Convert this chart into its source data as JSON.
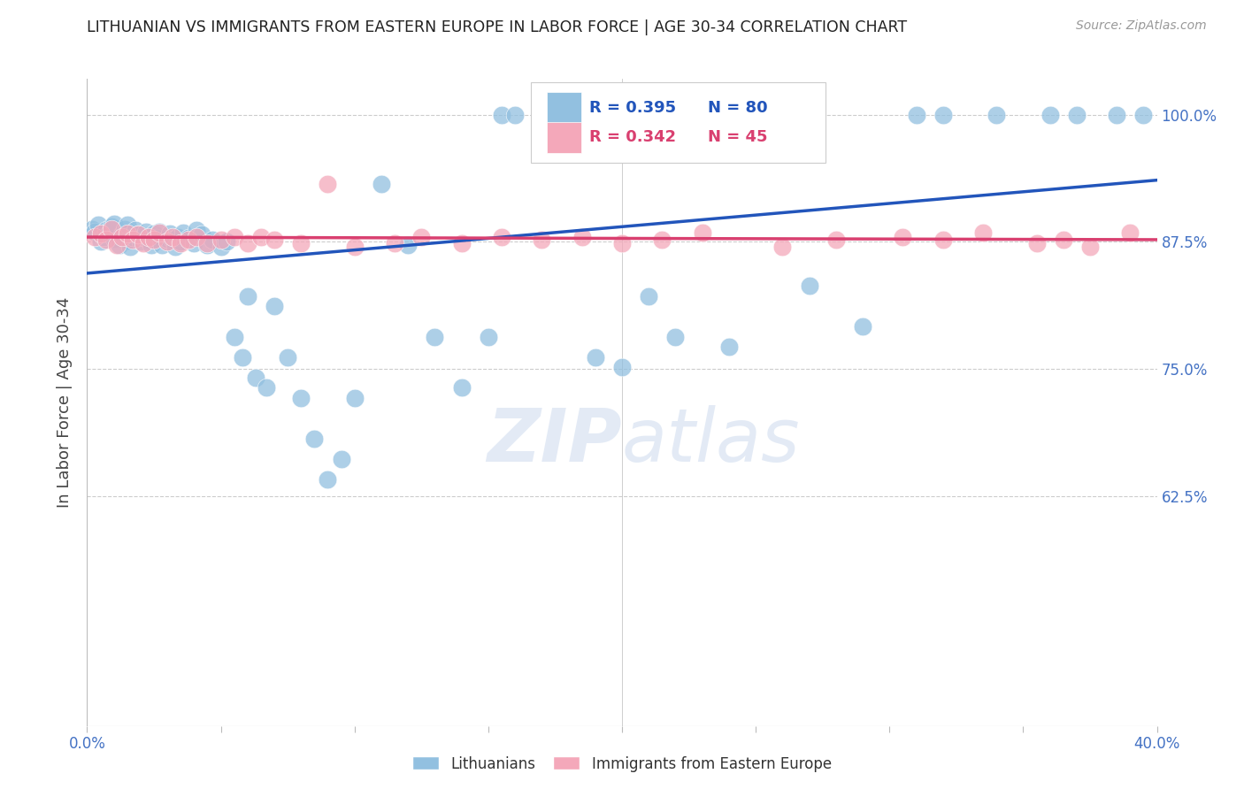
{
  "title": "LITHUANIAN VS IMMIGRANTS FROM EASTERN EUROPE IN LABOR FORCE | AGE 30-34 CORRELATION CHART",
  "source": "Source: ZipAtlas.com",
  "ylabel": "In Labor Force | Age 30-34",
  "xlim": [
    0.0,
    0.4
  ],
  "ylim": [
    0.4,
    1.035
  ],
  "yticks": [
    0.625,
    0.75,
    0.875,
    1.0
  ],
  "ytick_labels": [
    "62.5%",
    "75.0%",
    "87.5%",
    "100.0%"
  ],
  "xtick_positions": [
    0.0,
    0.05,
    0.1,
    0.15,
    0.2,
    0.25,
    0.3,
    0.35,
    0.4
  ],
  "xtick_labels": [
    "0.0%",
    "",
    "",
    "",
    "",
    "",
    "",
    "",
    "40.0%"
  ],
  "blue_color": "#92C0E0",
  "pink_color": "#F4A8BA",
  "blue_line_color": "#2255BB",
  "pink_line_color": "#D94070",
  "legend_label_blue": "Lithuanians",
  "legend_label_pink": "Immigrants from Eastern Europe",
  "watermark_zip": "ZIP",
  "watermark_atlas": "atlas",
  "background_color": "#ffffff",
  "grid_color": "#cccccc",
  "title_color": "#222222",
  "axis_label_color": "#444444",
  "tick_label_color": "#4472c4",
  "blue_R": 0.395,
  "blue_N": 80,
  "pink_R": 0.342,
  "pink_N": 45,
  "blue_x": [
    0.002,
    0.003,
    0.004,
    0.005,
    0.006,
    0.007,
    0.008,
    0.009,
    0.01,
    0.01,
    0.012,
    0.013,
    0.014,
    0.015,
    0.015,
    0.016,
    0.017,
    0.018,
    0.019,
    0.02,
    0.021,
    0.022,
    0.023,
    0.024,
    0.025,
    0.026,
    0.027,
    0.028,
    0.03,
    0.031,
    0.032,
    0.033,
    0.034,
    0.035,
    0.036,
    0.038,
    0.04,
    0.041,
    0.043,
    0.045,
    0.047,
    0.05,
    0.052,
    0.055,
    0.058,
    0.06,
    0.063,
    0.067,
    0.07,
    0.075,
    0.08,
    0.085,
    0.09,
    0.095,
    0.1,
    0.11,
    0.12,
    0.13,
    0.14,
    0.15,
    0.155,
    0.16,
    0.17,
    0.175,
    0.18,
    0.19,
    0.2,
    0.21,
    0.22,
    0.24,
    0.25,
    0.27,
    0.29,
    0.31,
    0.32,
    0.34,
    0.36,
    0.37,
    0.385,
    0.395
  ],
  "blue_y": [
    0.88,
    0.885,
    0.89,
    0.87,
    0.875,
    0.88,
    0.888,
    0.892,
    0.878,
    0.895,
    0.87,
    0.882,
    0.888,
    0.875,
    0.893,
    0.868,
    0.878,
    0.885,
    0.88,
    0.873,
    0.878,
    0.883,
    0.875,
    0.87,
    0.882,
    0.878,
    0.883,
    0.87,
    0.876,
    0.882,
    0.875,
    0.868,
    0.878,
    0.873,
    0.882,
    0.876,
    0.872,
    0.885,
    0.88,
    0.87,
    0.875,
    0.868,
    0.873,
    0.78,
    0.76,
    0.82,
    0.74,
    0.73,
    0.81,
    0.76,
    0.72,
    0.68,
    0.64,
    0.66,
    0.72,
    0.93,
    0.87,
    0.78,
    0.73,
    0.78,
    1.0,
    1.0,
    1.0,
    1.0,
    1.0,
    0.76,
    0.75,
    0.82,
    0.78,
    0.77,
    1.0,
    0.83,
    0.79,
    1.0,
    1.0,
    1.0,
    1.0,
    1.0,
    1.0,
    1.0
  ],
  "pink_x": [
    0.003,
    0.005,
    0.007,
    0.009,
    0.011,
    0.013,
    0.015,
    0.017,
    0.019,
    0.021,
    0.023,
    0.025,
    0.027,
    0.03,
    0.032,
    0.035,
    0.038,
    0.041,
    0.045,
    0.05,
    0.055,
    0.06,
    0.065,
    0.07,
    0.08,
    0.09,
    0.1,
    0.115,
    0.125,
    0.14,
    0.155,
    0.17,
    0.185,
    0.2,
    0.215,
    0.23,
    0.26,
    0.28,
    0.305,
    0.32,
    0.335,
    0.355,
    0.365,
    0.375,
    0.39
  ],
  "pink_y": [
    0.878,
    0.882,
    0.875,
    0.887,
    0.87,
    0.878,
    0.882,
    0.875,
    0.88,
    0.872,
    0.878,
    0.875,
    0.882,
    0.873,
    0.878,
    0.872,
    0.875,
    0.878,
    0.872,
    0.875,
    0.878,
    0.872,
    0.878,
    0.875,
    0.872,
    0.93,
    0.868,
    0.872,
    0.878,
    0.872,
    0.878,
    0.875,
    0.878,
    0.872,
    0.875,
    0.882,
    0.868,
    0.875,
    0.878,
    0.875,
    0.882,
    0.872,
    0.875,
    0.868,
    0.882
  ]
}
